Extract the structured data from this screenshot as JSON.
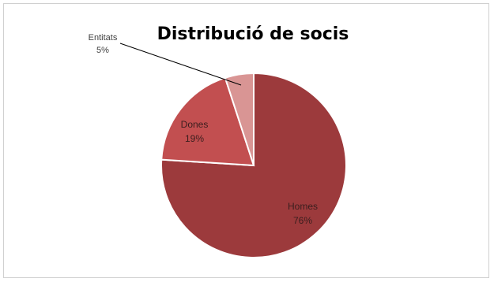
{
  "chart_data": {
    "type": "pie",
    "title": "Distribució de socis",
    "slices": [
      {
        "label": "Homes",
        "value": 76,
        "value_label": "76%",
        "color": "#9c3a3c"
      },
      {
        "label": "Dones",
        "value": 19,
        "value_label": "19%",
        "color": "#c24f50"
      },
      {
        "label": "Entitats",
        "value": 5,
        "value_label": "5%",
        "color": "#d99594"
      }
    ],
    "legend": "none",
    "data_labels": "category name and percentage"
  }
}
